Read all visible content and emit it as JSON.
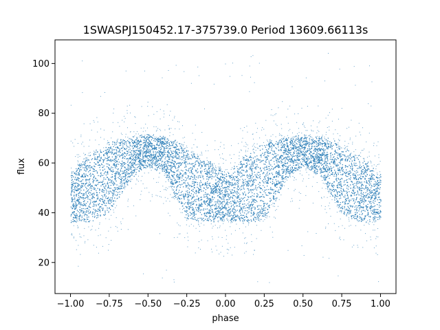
{
  "chart_data": {
    "type": "scatter",
    "title": "1SWASPJ150452.17-375739.0 Period 13609.66113s",
    "xlabel": "phase",
    "ylabel": "flux",
    "xlim": [
      -1.1,
      1.1
    ],
    "ylim": [
      7.5,
      109.5
    ],
    "xticks": [
      -1.0,
      -0.75,
      -0.5,
      -0.25,
      0.0,
      0.25,
      0.5,
      0.75,
      1.0
    ],
    "xtick_labels": [
      "−1.00",
      "−0.75",
      "−0.50",
      "−0.25",
      "0.00",
      "0.25",
      "0.50",
      "0.75",
      "1.00"
    ],
    "yticks": [
      20,
      40,
      60,
      80,
      100
    ],
    "ytick_labels": [
      "20",
      "40",
      "60",
      "80",
      "100"
    ],
    "grid": false,
    "point_color": "#1f77b4",
    "light_curve": {
      "phase_min": -1.0,
      "phase_max": 1.0,
      "band_profile": [
        {
          "phase": -1.0,
          "low": 37,
          "high": 56
        },
        {
          "phase": -0.9,
          "low": 37,
          "high": 62
        },
        {
          "phase": -0.8,
          "low": 38,
          "high": 66
        },
        {
          "phase": -0.75,
          "low": 41,
          "high": 68
        },
        {
          "phase": -0.7,
          "low": 46,
          "high": 69
        },
        {
          "phase": -0.6,
          "low": 55,
          "high": 70
        },
        {
          "phase": -0.5,
          "low": 59,
          "high": 71
        },
        {
          "phase": -0.4,
          "low": 56,
          "high": 70
        },
        {
          "phase": -0.3,
          "low": 45,
          "high": 68
        },
        {
          "phase": -0.25,
          "low": 38,
          "high": 65
        },
        {
          "phase": -0.15,
          "low": 37,
          "high": 62
        },
        {
          "phase": -0.05,
          "low": 37,
          "high": 58
        },
        {
          "phase": 0.0,
          "low": 38,
          "high": 56
        },
        {
          "phase": 0.05,
          "low": 37,
          "high": 58
        },
        {
          "phase": 0.15,
          "low": 37,
          "high": 64
        },
        {
          "phase": 0.25,
          "low": 38,
          "high": 67
        },
        {
          "phase": 0.3,
          "low": 44,
          "high": 69
        },
        {
          "phase": 0.4,
          "low": 55,
          "high": 70
        },
        {
          "phase": 0.5,
          "low": 59,
          "high": 71
        },
        {
          "phase": 0.6,
          "low": 56,
          "high": 70
        },
        {
          "phase": 0.7,
          "low": 46,
          "high": 68
        },
        {
          "phase": 0.75,
          "low": 40,
          "high": 66
        },
        {
          "phase": 0.85,
          "low": 37,
          "high": 63
        },
        {
          "phase": 1.0,
          "low": 37,
          "high": 55
        }
      ],
      "outlier_range": [
        12,
        105
      ]
    }
  }
}
